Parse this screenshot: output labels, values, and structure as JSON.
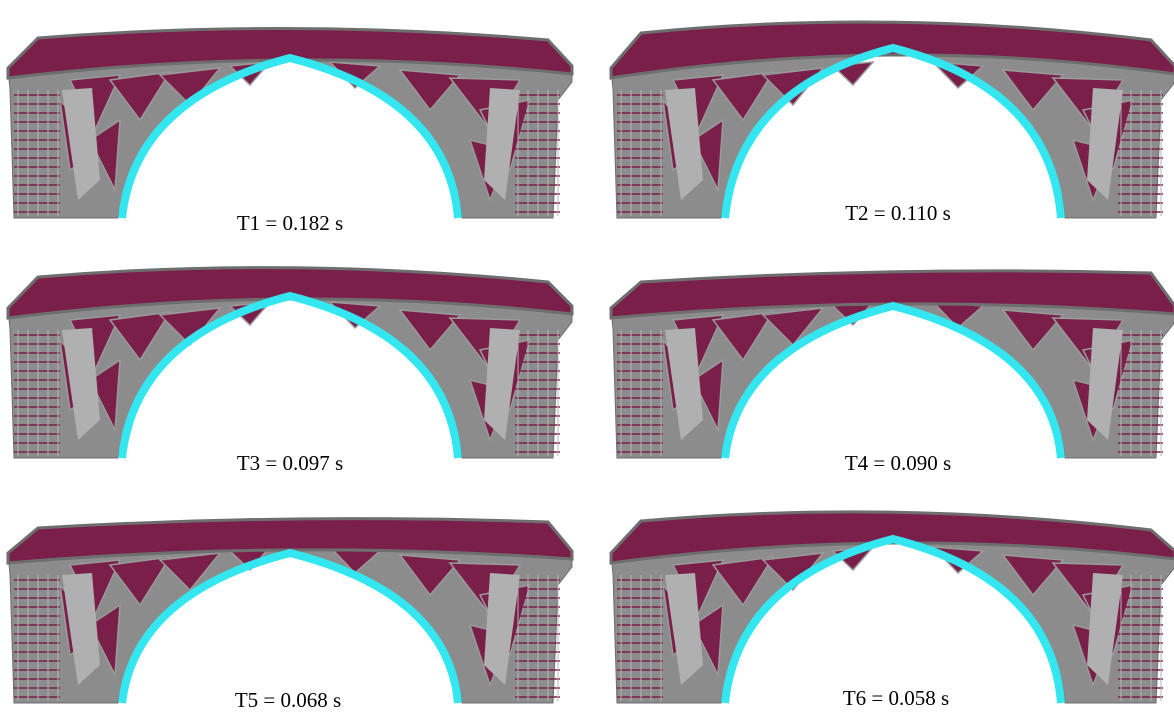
{
  "panels": [
    {
      "label": "T1 = 0.182 s"
    },
    {
      "label": "T2 = 0.110 s"
    },
    {
      "label": "T3 = 0.097 s"
    },
    {
      "label": "T4 = 0.090 s"
    },
    {
      "label": "T5 = 0.068 s"
    },
    {
      "label": "T6 = 0.058 s"
    }
  ]
}
